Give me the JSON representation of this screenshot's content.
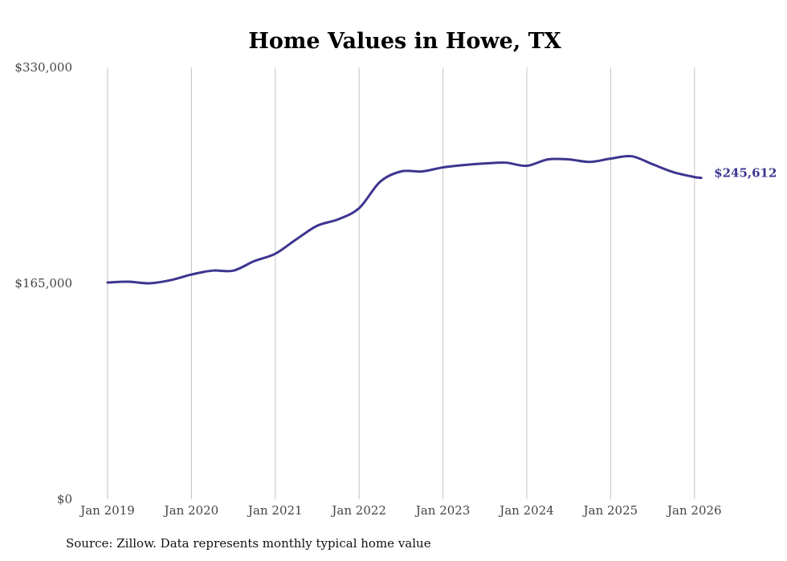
{
  "chart_data": {
    "type": "line",
    "title": "Home Values in Howe, TX",
    "xlabel": "",
    "ylabel": "",
    "ylim": [
      0,
      330000
    ],
    "xlim": [
      2019.0,
      2026.08
    ],
    "y_ticks": [
      {
        "value": 0,
        "label": "$0"
      },
      {
        "value": 165000,
        "label": "$165,000"
      },
      {
        "value": 330000,
        "label": "$330,000"
      }
    ],
    "x_ticks": [
      {
        "value": 2019,
        "label": "Jan 2019"
      },
      {
        "value": 2020,
        "label": "Jan 2020"
      },
      {
        "value": 2021,
        "label": "Jan 2021"
      },
      {
        "value": 2022,
        "label": "Jan 2022"
      },
      {
        "value": 2023,
        "label": "Jan 2023"
      },
      {
        "value": 2024,
        "label": "Jan 2024"
      },
      {
        "value": 2025,
        "label": "Jan 2025"
      },
      {
        "value": 2026,
        "label": "Jan 2026"
      }
    ],
    "grid": "vertical",
    "series": [
      {
        "name": "Typical home value",
        "color": "#3d3590",
        "x": [
          2019.0,
          2019.25,
          2019.5,
          2019.75,
          2020.0,
          2020.25,
          2020.5,
          2020.75,
          2021.0,
          2021.25,
          2021.5,
          2021.75,
          2022.0,
          2022.25,
          2022.5,
          2022.75,
          2023.0,
          2023.25,
          2023.5,
          2023.75,
          2024.0,
          2024.25,
          2024.5,
          2024.75,
          2025.0,
          2025.25,
          2025.5,
          2025.75,
          2026.0,
          2026.08
        ],
        "values": [
          165600,
          166200,
          165000,
          167400,
          171700,
          174700,
          174700,
          182000,
          187600,
          198600,
          209000,
          213900,
          222400,
          242600,
          250500,
          250500,
          253600,
          255400,
          256600,
          257200,
          254800,
          259700,
          259700,
          257800,
          260300,
          262100,
          256000,
          249900,
          246200,
          245612
        ]
      }
    ],
    "end_label": "$245,612"
  },
  "source": "Source: Zillow. Data represents monthly typical home value"
}
